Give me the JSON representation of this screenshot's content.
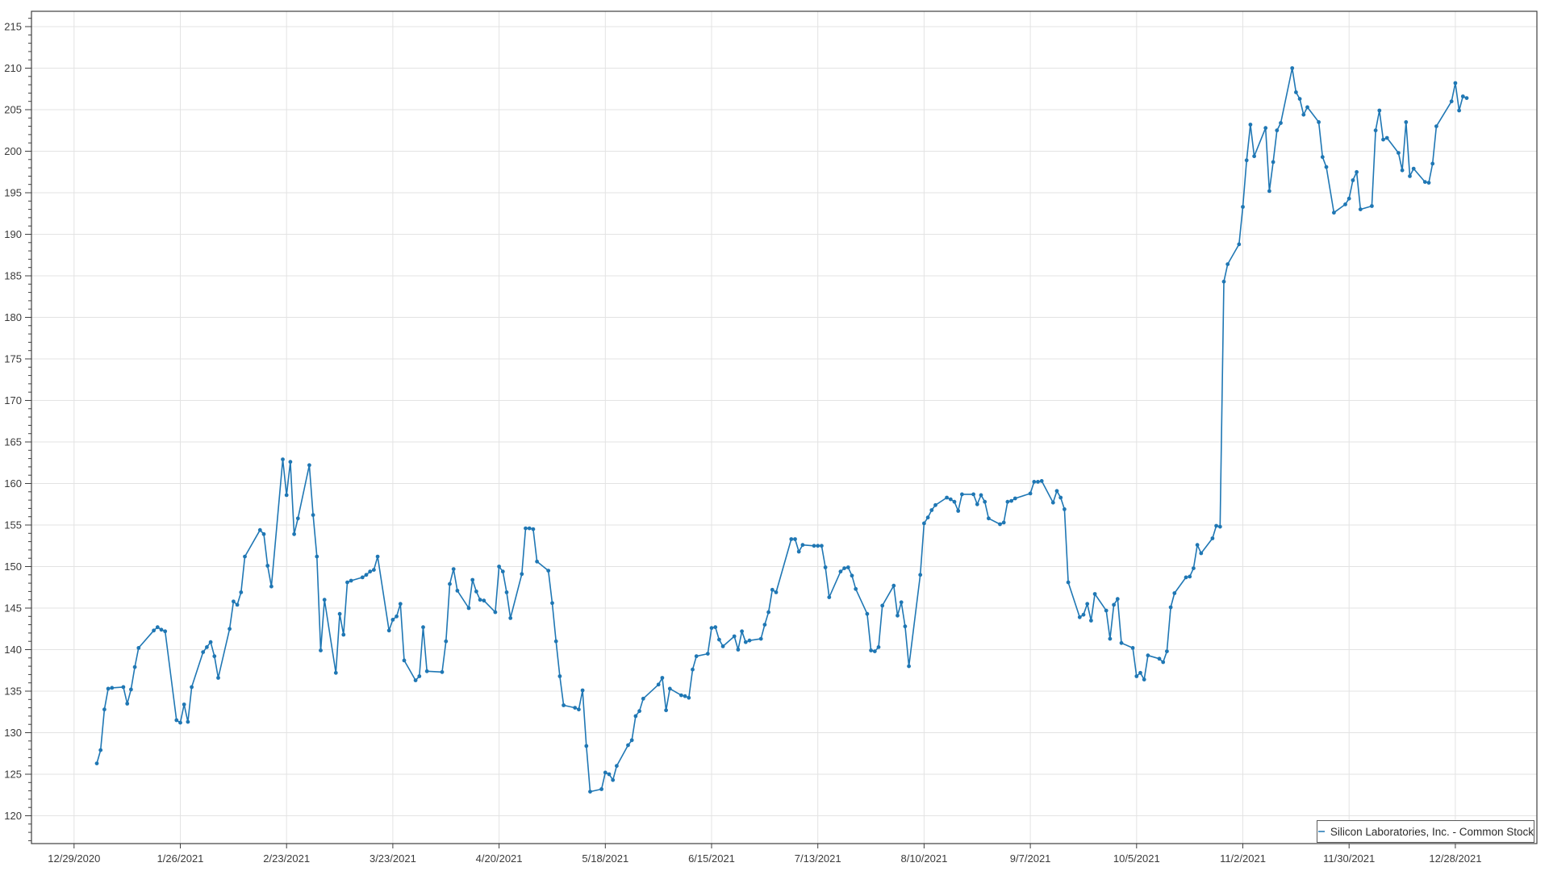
{
  "chart_data": {
    "type": "line",
    "title": "",
    "xlabel": "",
    "ylabel": "",
    "grid": true,
    "legend_position": "bottom-right",
    "line_color": "#1f77b4",
    "marker": "circle",
    "x_axis": {
      "tick_labels": [
        "12/29/2020",
        "1/26/2021",
        "2/23/2021",
        "3/23/2021",
        "4/20/2021",
        "5/18/2021",
        "6/15/2021",
        "7/13/2021",
        "8/10/2021",
        "9/7/2021",
        "10/5/2021",
        "11/2/2021",
        "11/30/2021",
        "12/28/2021"
      ],
      "first_tick_date": "2020-12-29",
      "tick_interval_days": 28
    },
    "y_axis": {
      "ticks": [
        120,
        125,
        130,
        135,
        140,
        145,
        150,
        155,
        160,
        165,
        170,
        175,
        180,
        185,
        190,
        195,
        200,
        205,
        210,
        215
      ],
      "minor_step": 1,
      "ylim": [
        116.6,
        216.8
      ]
    },
    "series": [
      {
        "name": "Silicon Laboratories, Inc. - Common Stock",
        "start_date": "2021-01-04",
        "frequency": "daily (trading days)",
        "values": [
          126.3,
          127.9,
          132.8,
          135.3,
          135.4,
          135.5,
          133.5,
          135.2,
          137.9,
          140.2,
          142.3,
          142.7,
          142.4,
          142.2,
          131.5,
          131.2,
          133.4,
          131.3,
          135.5,
          139.7,
          140.3,
          140.9,
          139.2,
          136.6,
          142.5,
          145.8,
          145.4,
          146.9,
          151.2,
          154.4,
          153.9,
          150.1,
          147.6,
          162.9,
          158.6,
          162.6,
          153.9,
          155.8,
          162.2,
          156.2,
          151.2,
          139.9,
          146.0,
          137.2,
          144.3,
          141.8,
          148.1,
          148.3,
          148.7,
          149.0,
          149.4,
          149.6,
          151.2,
          142.3,
          143.6,
          144.0,
          145.5,
          138.7,
          136.3,
          136.8,
          142.7,
          137.4,
          137.3,
          141.0,
          147.9,
          149.7,
          147.1,
          145.0,
          148.4,
          147.0,
          146.0,
          145.9,
          144.5,
          150.0,
          149.4,
          146.9,
          143.8,
          149.1,
          154.6,
          154.6,
          154.5,
          150.6,
          149.5,
          145.6,
          141.0,
          136.8,
          133.3,
          133.0,
          132.8,
          135.1,
          128.4,
          122.9,
          123.2,
          125.2,
          125.0,
          124.3,
          126.0,
          128.5,
          129.1,
          132.0,
          132.6,
          134.1,
          135.8,
          136.6,
          132.7,
          135.3,
          134.5,
          134.4,
          134.2,
          137.6,
          139.2,
          139.5,
          142.6,
          142.7,
          141.2,
          140.4,
          141.6,
          140.0,
          142.2,
          140.9,
          141.1,
          141.3,
          143.0,
          144.5,
          147.2,
          146.9,
          153.3,
          153.3,
          151.8,
          152.6,
          152.5,
          152.5,
          152.5,
          149.9,
          146.3,
          149.4,
          149.8,
          149.9,
          148.9,
          147.3,
          144.3,
          139.9,
          139.8,
          140.3,
          145.3,
          147.7,
          144.1,
          145.7,
          142.8,
          138.0,
          149.0,
          155.2,
          155.9,
          156.8,
          157.4,
          158.3,
          158.1,
          157.8,
          156.7,
          158.7,
          158.7,
          157.5,
          158.6,
          157.8,
          155.8,
          155.1,
          155.3,
          157.8,
          157.9,
          158.2,
          158.8,
          160.2,
          160.2,
          160.3,
          157.7,
          159.1,
          158.3,
          156.9,
          148.1,
          143.9,
          144.2,
          145.5,
          143.5,
          146.7,
          144.7,
          141.3,
          145.4,
          146.1,
          140.8,
          140.2,
          136.8,
          137.2,
          136.4,
          139.3,
          138.9,
          138.5,
          139.8,
          145.1,
          146.8,
          148.7,
          148.8,
          149.8,
          152.6,
          151.6,
          153.4,
          154.9,
          154.8,
          184.3,
          186.4,
          188.8,
          193.3,
          198.9,
          203.2,
          199.4,
          202.8,
          195.2,
          198.7,
          202.5,
          203.4,
          210.0,
          207.1,
          206.3,
          204.4,
          205.3,
          203.5,
          199.3,
          198.1,
          192.6,
          193.6,
          194.3,
          196.5,
          197.5,
          193.0,
          193.4,
          202.5,
          204.9,
          201.4,
          201.6,
          199.8,
          197.7,
          203.5,
          197.0,
          197.9,
          196.3,
          196.2,
          198.5,
          203.0,
          206.0,
          208.2,
          204.9,
          206.6,
          206.4
        ]
      }
    ]
  },
  "legend": {
    "label": "Silicon Laboratories, Inc. - Common Stock"
  },
  "colors": {
    "line": "#1f77b4",
    "grid": "#e3e3e3",
    "axis": "#3f3f3f",
    "text": "#3a3a3a",
    "background": "#ffffff",
    "legend_border": "#5a5a5a"
  }
}
